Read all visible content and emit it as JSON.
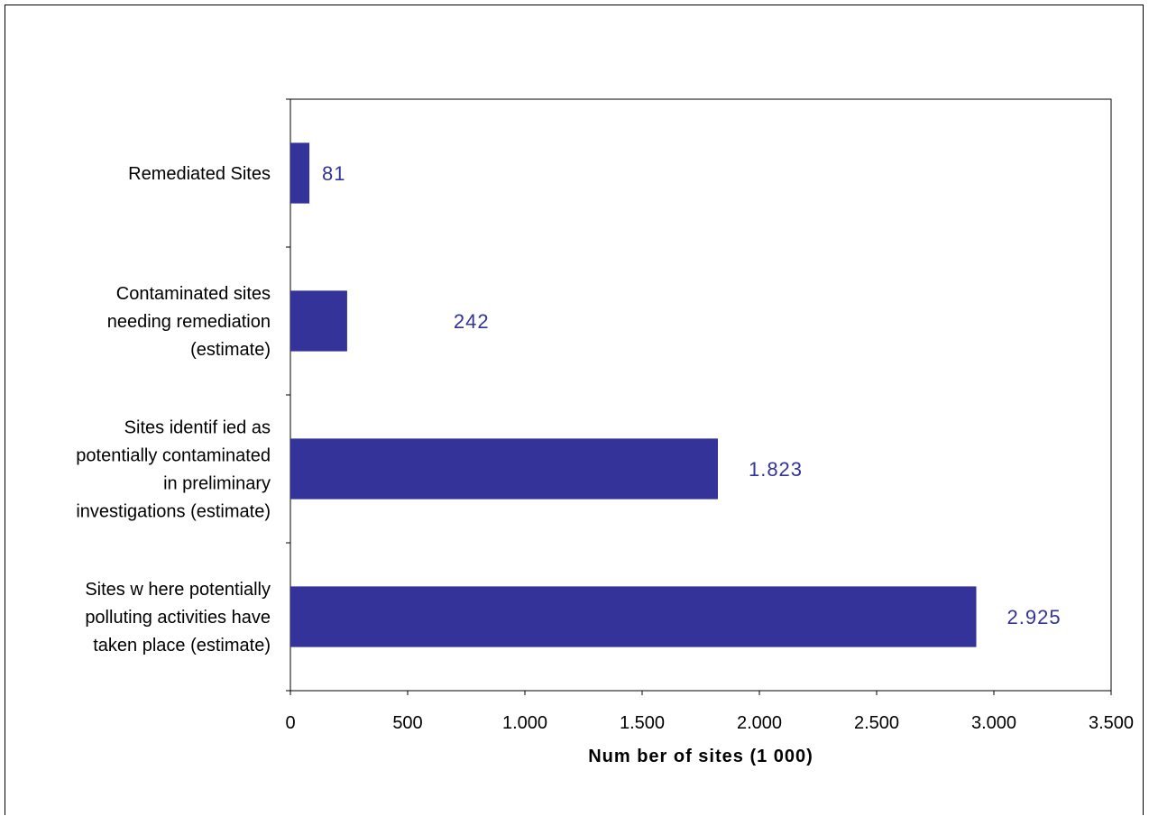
{
  "chart_data": {
    "type": "bar",
    "orientation": "horizontal",
    "categories": [
      [
        "Remediated Sites"
      ],
      [
        "Contaminated sites",
        "needing remediation",
        "(estimate)"
      ],
      [
        "Sites identif ied as",
        "potentially contaminated",
        "in preliminary",
        "investigations (estimate)"
      ],
      [
        "Sites w here potentially",
        "polluting activities have",
        "taken place (estimate)"
      ]
    ],
    "values": [
      81,
      242,
      1823,
      2925
    ],
    "data_labels": [
      "81",
      "242",
      "1.823",
      "2.925"
    ],
    "xlabel": "Num ber of sites (1 000)",
    "ylabel": "",
    "xlim": [
      0,
      3500
    ],
    "xticks": [
      0,
      500,
      1000,
      1500,
      2000,
      2500,
      3000,
      3500
    ],
    "xtick_labels": [
      "0",
      "500",
      "1.000",
      "1.500",
      "2.000",
      "2.500",
      "3.000",
      "3.500"
    ],
    "grid": false,
    "legend": "none",
    "bar_color": "#333399",
    "label_color": "#333399"
  }
}
